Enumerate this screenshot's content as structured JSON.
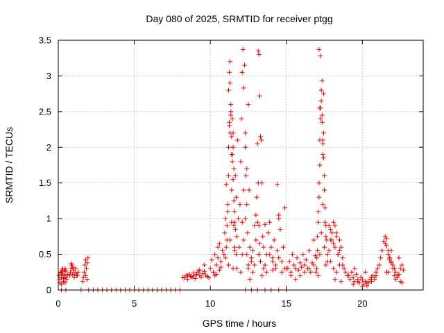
{
  "chart_data": {
    "type": "scatter",
    "title": "Day 080 of 2025, SRMTID for receiver ptgg",
    "xlabel": "GPS time / hours",
    "ylabel": "SRMTID / TECUs",
    "xlim": [
      0,
      24
    ],
    "ylim": [
      0,
      3.5
    ],
    "xticks": [
      0,
      5,
      10,
      15,
      20
    ],
    "xtick_labels": [
      "0",
      "5",
      "10",
      "15",
      "20"
    ],
    "yticks": [
      0,
      0.5,
      1,
      1.5,
      2,
      2.5,
      3,
      3.5
    ],
    "ytick_labels": [
      "0",
      "0.5",
      "1",
      "1.5",
      "2",
      "2.5",
      "3",
      "3.5"
    ],
    "grid": true,
    "marker": "+",
    "color": "#e00000",
    "series": [
      {
        "name": "SRMTID",
        "x": [
          0.05,
          0.1,
          0.15,
          0.2,
          0.25,
          0.3,
          0.35,
          0.4,
          0.45,
          0.5,
          0.55,
          0.6,
          0.1,
          0.2,
          0.3,
          0.4,
          0.5,
          0.2,
          0.35,
          0.45,
          0.75,
          0.8,
          0.85,
          0.9,
          0.95,
          1.0,
          1.05,
          1.1,
          1.15,
          1.2,
          0.85,
          0.95,
          1.05,
          1.25,
          1.3,
          1.6,
          1.65,
          1.7,
          1.75,
          1.8,
          1.85,
          1.9,
          1.95,
          1.8,
          1.9,
          8.2,
          8.3,
          8.4,
          8.5,
          8.6,
          8.7,
          8.8,
          8.9,
          9.0,
          9.1,
          9.2,
          9.3,
          9.4,
          9.5,
          9.6,
          9.7,
          9.8,
          9.9,
          8.5,
          8.9,
          9.3,
          9.6,
          9.2,
          10.0,
          10.1,
          10.2,
          10.3,
          10.4,
          10.5,
          10.6,
          10.7,
          10.8,
          10.3,
          10.5,
          10.7,
          10.6,
          10.4,
          10.9,
          10.95,
          11.0,
          11.05,
          11.1,
          11.15,
          11.2,
          11.25,
          11.3,
          11.35,
          11.4,
          11.45,
          11.5,
          11.55,
          11.6,
          11.65,
          11.7,
          11.75,
          11.8,
          11.85,
          11.0,
          11.05,
          11.1,
          11.15,
          11.2,
          11.25,
          11.3,
          11.35,
          11.4,
          11.45,
          11.5,
          11.55,
          11.6,
          11.65,
          11.7,
          11.75,
          11.2,
          11.25,
          11.3,
          11.35,
          11.4,
          11.45,
          11.5,
          11.55,
          11.6,
          11.2,
          11.3,
          11.4,
          11.5,
          11.6,
          11.9,
          11.95,
          12.0,
          12.05,
          12.1,
          12.15,
          12.2,
          12.25,
          12.3,
          12.35,
          12.4,
          12.45,
          12.5,
          12.55,
          12.0,
          12.1,
          12.2,
          12.3,
          12.4,
          12.5,
          12.1,
          12.2,
          12.3,
          12.4,
          12.5,
          12.6,
          12.7,
          12.8,
          12.9,
          13.0,
          13.05,
          13.1,
          13.15,
          13.2,
          13.25,
          13.3,
          13.35,
          13.4,
          13.45,
          13.5,
          12.6,
          12.7,
          12.8,
          12.9,
          13.0,
          13.1,
          13.2,
          13.3,
          13.4,
          13.5,
          13.6,
          13.7,
          13.8,
          13.9,
          14.0,
          14.1,
          14.2,
          14.3,
          14.4,
          14.5,
          14.6,
          14.7,
          14.8,
          14.9,
          15.0,
          13.7,
          13.9,
          14.1,
          14.3,
          14.5,
          14.7,
          14.9,
          13.15,
          13.2,
          13.25,
          13.2,
          14.4,
          14.5,
          13.6,
          14.1,
          15.1,
          15.2,
          15.3,
          15.4,
          15.5,
          15.6,
          15.7,
          15.8,
          15.9,
          16.0,
          16.1,
          16.2,
          16.3,
          16.4,
          16.5,
          16.6,
          16.7,
          16.8,
          16.9,
          15.3,
          15.6,
          15.9,
          16.2,
          16.5,
          16.8,
          16.95,
          17.0,
          17.05,
          17.1,
          17.15,
          17.2,
          17.25,
          17.3,
          17.35,
          17.4,
          17.45,
          17.5,
          17.55,
          17.6,
          17.65,
          17.7,
          17.0,
          17.05,
          17.1,
          17.15,
          17.2,
          17.25,
          17.3,
          17.35,
          17.4,
          17.45,
          17.5,
          17.55,
          17.6,
          17.15,
          17.25,
          17.35,
          17.45,
          17.1,
          17.2,
          17.3,
          17.4,
          17.5,
          17.6,
          17.2,
          17.4,
          17.7,
          17.8,
          17.9,
          18.0,
          18.1,
          18.2,
          18.3,
          18.4,
          18.5,
          18.6,
          18.7,
          18.8,
          18.9,
          19.0,
          17.8,
          17.9,
          18.0,
          18.1,
          18.2,
          18.3,
          18.4,
          18.5,
          17.9,
          18.1,
          18.3,
          18.5,
          18.7,
          18.2,
          18.6,
          19.1,
          19.2,
          19.3,
          19.4,
          19.5,
          19.6,
          19.7,
          19.8,
          19.9,
          20.0,
          20.1,
          20.2,
          20.3,
          20.4,
          20.5,
          20.6,
          20.7,
          20.8,
          20.9,
          21.0,
          19.4,
          19.7,
          20.0,
          20.3,
          20.6,
          20.9,
          19.5,
          20.2,
          20.8,
          21.1,
          21.2,
          21.3,
          21.4,
          21.5,
          21.6,
          21.7,
          21.8,
          21.9,
          22.0,
          22.1,
          22.2,
          22.3,
          22.4,
          22.5,
          22.6,
          22.7,
          21.5,
          21.6,
          21.7,
          21.8,
          21.9,
          22.0,
          22.1,
          22.2,
          21.6,
          21.8,
          22.0,
          22.3,
          22.5,
          22.6,
          21.7,
          21.9,
          22.4,
          0.2,
          0.5,
          1.5,
          2.0,
          2.3,
          2.6,
          2.9,
          3.2,
          3.5,
          3.8,
          4.1,
          4.4,
          4.7,
          5.0,
          5.3,
          5.6,
          5.9,
          6.2,
          6.5,
          6.8,
          7.1,
          7.4,
          7.7,
          8.0,
          12.3,
          12.7,
          13.1,
          13.6,
          14.0,
          14.5,
          15.0
        ],
        "y": [
          0.2,
          0.15,
          0.25,
          0.18,
          0.28,
          0.22,
          0.12,
          0.26,
          0.3,
          0.18,
          0.15,
          0.22,
          0.1,
          0.08,
          0.3,
          0.2,
          0.27,
          0.24,
          0.16,
          0.1,
          0.2,
          0.25,
          0.3,
          0.35,
          0.22,
          0.28,
          0.18,
          0.24,
          0.3,
          0.2,
          0.37,
          0.32,
          0.18,
          0.2,
          0.25,
          0.12,
          0.18,
          0.25,
          0.35,
          0.42,
          0.3,
          0.38,
          0.45,
          0.2,
          0.15,
          0.18,
          0.17,
          0.2,
          0.15,
          0.22,
          0.19,
          0.18,
          0.2,
          0.16,
          0.22,
          0.25,
          0.2,
          0.18,
          0.23,
          0.26,
          0.21,
          0.19,
          0.17,
          0.2,
          0.24,
          0.28,
          0.35,
          0.27,
          0.3,
          0.42,
          0.25,
          0.5,
          0.35,
          0.45,
          0.28,
          0.4,
          0.55,
          0.2,
          0.6,
          0.32,
          0.65,
          0.22,
          0.5,
          0.8,
          1.0,
          1.48,
          0.7,
          1.2,
          2.0,
          2.35,
          2.2,
          2.45,
          1.4,
          1.8,
          2.0,
          0.9,
          0.6,
          1.6,
          1.3,
          0.75,
          2.1,
          1.0,
          0.45,
          0.6,
          0.9,
          1.1,
          1.6,
          2.3,
          2.9,
          2.6,
          1.9,
          2.4,
          2.2,
          1.7,
          1.1,
          0.85,
          0.5,
          0.3,
          2.8,
          3.05,
          3.2,
          2.5,
          2.15,
          1.9,
          1.55,
          1.25,
          0.95,
          0.35,
          0.7,
          0.95,
          0.3,
          0.55,
          0.6,
          1.2,
          1.8,
          2.4,
          3.05,
          3.37,
          2.83,
          3.15,
          2.0,
          1.6,
          1.2,
          0.8,
          2.6,
          1.4,
          0.25,
          0.5,
          0.7,
          1.0,
          0.5,
          0.35,
          0.95,
          1.4,
          2.2,
          1.7,
          0.3,
          0.6,
          0.4,
          0.55,
          0.9,
          1.05,
          1.3,
          2.05,
          3.35,
          3.3,
          2.72,
          2.15,
          2.1,
          1.5,
          0.75,
          0.6,
          0.15,
          0.45,
          0.25,
          0.35,
          0.7,
          0.95,
          0.5,
          0.4,
          0.2,
          0.3,
          0.35,
          0.5,
          0.8,
          0.95,
          0.6,
          0.45,
          0.7,
          0.3,
          0.55,
          1.0,
          0.85,
          0.4,
          0.6,
          1.15,
          0.3,
          0.25,
          0.5,
          0.4,
          0.35,
          0.45,
          0.25,
          0.3,
          1.5,
          0.9,
          0.65,
          0.5,
          1.48,
          1.05,
          0.92,
          0.28,
          0.3,
          0.4,
          0.25,
          0.5,
          0.35,
          0.3,
          0.45,
          0.28,
          0.38,
          0.32,
          0.5,
          0.35,
          0.42,
          0.3,
          0.55,
          0.25,
          0.38,
          0.7,
          0.48,
          0.2,
          0.15,
          0.2,
          0.25,
          0.3,
          0.35,
          0.25,
          0.45,
          0.75,
          1.1,
          1.5,
          2.1,
          2.55,
          2.8,
          2.35,
          1.9,
          2.2,
          1.6,
          1.15,
          0.9,
          0.7,
          0.5,
          0.3,
          0.55,
          0.95,
          1.3,
          1.75,
          2.4,
          2.65,
          2.45,
          2.05,
          1.85,
          1.4,
          0.95,
          0.75,
          3.37,
          3.28,
          2.93,
          2.75,
          0.2,
          0.5,
          0.8,
          1.2,
          0.6,
          0.35,
          2.55,
          2.1,
          0.4,
          0.55,
          0.7,
          0.8,
          0.65,
          0.9,
          0.75,
          0.5,
          0.35,
          0.6,
          0.45,
          0.3,
          0.25,
          0.2,
          0.9,
          0.85,
          0.7,
          0.95,
          0.6,
          0.8,
          0.5,
          0.7,
          0.4,
          0.3,
          0.25,
          0.55,
          0.35,
          0.15,
          0.12,
          0.2,
          0.15,
          0.25,
          0.18,
          0.12,
          0.22,
          0.15,
          0.1,
          0.18,
          0.14,
          0.08,
          0.12,
          0.06,
          0.1,
          0.15,
          0.12,
          0.2,
          0.18,
          0.25,
          0.3,
          0.08,
          0.12,
          0.05,
          0.1,
          0.18,
          0.2,
          0.3,
          0.25,
          0.15,
          0.35,
          0.45,
          0.55,
          0.68,
          0.75,
          0.62,
          0.5,
          0.45,
          0.4,
          0.35,
          0.3,
          0.25,
          0.2,
          0.22,
          0.3,
          0.35,
          0.28,
          0.65,
          0.72,
          0.55,
          0.45,
          0.38,
          0.3,
          0.2,
          0.15,
          0.25,
          0.42,
          0.35,
          0.18,
          0.12,
          0.1,
          0.25,
          0.55,
          0.45,
          0,
          0,
          0,
          0,
          0,
          0,
          0,
          0,
          0,
          0,
          0,
          0,
          0,
          0,
          0,
          0,
          0,
          0,
          0,
          0,
          0,
          0,
          0,
          0,
          0,
          0,
          0,
          0,
          0,
          0,
          0
        ]
      }
    ]
  }
}
